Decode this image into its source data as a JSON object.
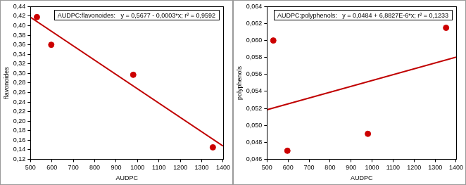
{
  "chart_data": [
    {
      "type": "scatter",
      "annotation": "AUDPC:flavonoides:   y = 0,5677 - 0,0003*x; r² = 0,9592",
      "x_label": "AUDPC",
      "y_label": "flavonoides",
      "xlim": [
        500,
        1400
      ],
      "xticks": [
        500,
        600,
        700,
        800,
        900,
        1000,
        1100,
        1200,
        1300,
        1400
      ],
      "ylim": [
        0.12,
        0.44
      ],
      "yticks": [
        {
          "value": 0.12,
          "label": "0,12"
        },
        {
          "value": 0.14,
          "label": "0,14"
        },
        {
          "value": 0.16,
          "label": "0,16"
        },
        {
          "value": 0.18,
          "label": "0,18"
        },
        {
          "value": 0.2,
          "label": "0,20"
        },
        {
          "value": 0.22,
          "label": "0,22"
        },
        {
          "value": 0.24,
          "label": "0,24"
        },
        {
          "value": 0.26,
          "label": "0,26"
        },
        {
          "value": 0.28,
          "label": "0,28"
        },
        {
          "value": 0.3,
          "label": "0,30"
        },
        {
          "value": 0.32,
          "label": "0,32"
        },
        {
          "value": 0.34,
          "label": "0,34"
        },
        {
          "value": 0.36,
          "label": "0,36"
        },
        {
          "value": 0.38,
          "label": "0,38"
        },
        {
          "value": 0.4,
          "label": "0,40"
        },
        {
          "value": 0.42,
          "label": "0,42"
        },
        {
          "value": 0.44,
          "label": "0,44"
        }
      ],
      "grid": false,
      "series": [
        {
          "type": "scatter",
          "marker": "circle",
          "color": "#cc0000",
          "x": [
            530,
            597,
            980,
            1352
          ],
          "values": [
            0.418,
            0.36,
            0.297,
            0.145
          ]
        },
        {
          "type": "line",
          "line_style": "solid",
          "color": "#c00000",
          "x": [
            500,
            1400
          ],
          "values": [
            0.4177,
            0.1477
          ]
        }
      ]
    },
    {
      "type": "scatter",
      "annotation": "AUDPC:polyphenols:   y = 0,0484 + 6,8827E-6*x; r² = 0,1233",
      "x_label": "AUDPC",
      "y_label": "polyphenols",
      "xlim": [
        500,
        1400
      ],
      "xticks": [
        500,
        600,
        700,
        800,
        900,
        1000,
        1100,
        1200,
        1300,
        1400
      ],
      "ylim": [
        0.046,
        0.064
      ],
      "yticks": [
        {
          "value": 0.046,
          "label": "0,046"
        },
        {
          "value": 0.048,
          "label": "0,048"
        },
        {
          "value": 0.05,
          "label": "0,050"
        },
        {
          "value": 0.052,
          "label": "0,052"
        },
        {
          "value": 0.054,
          "label": "0,054"
        },
        {
          "value": 0.056,
          "label": "0,056"
        },
        {
          "value": 0.058,
          "label": "0,058"
        },
        {
          "value": 0.06,
          "label": "0,060"
        },
        {
          "value": 0.062,
          "label": "0,062"
        },
        {
          "value": 0.064,
          "label": "0,064"
        }
      ],
      "grid": false,
      "series": [
        {
          "type": "scatter",
          "marker": "circle",
          "color": "#cc0000",
          "x": [
            530,
            597,
            980,
            1352
          ],
          "values": [
            0.06,
            0.047,
            0.049,
            0.0615
          ]
        },
        {
          "type": "line",
          "line_style": "solid",
          "color": "#c00000",
          "x": [
            500,
            1400
          ],
          "values": [
            0.05184,
            0.05804
          ]
        }
      ]
    }
  ]
}
